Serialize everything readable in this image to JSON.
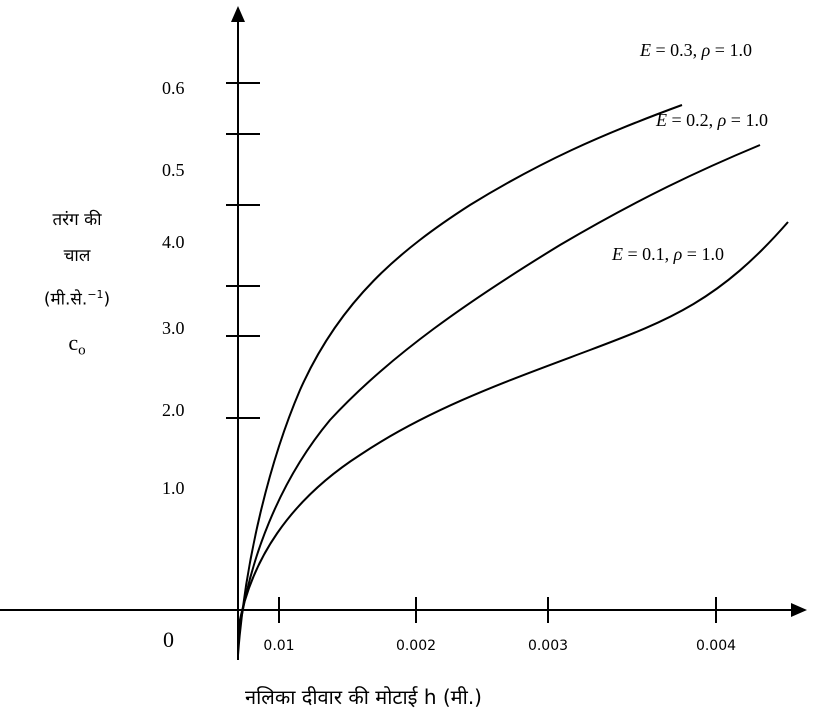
{
  "chart_data": {
    "type": "line",
    "title": "",
    "xlabel": "नलिका दीवार की मोटाई h   (मी.)",
    "ylabel": {
      "line1": "तरंग की",
      "line2": "चाल",
      "line3": "(मी.से.",
      "line3_sup": "−1",
      "line3_end": ")",
      "symbol": "c",
      "symbol_sub": "o"
    },
    "origin_label": "0",
    "x_ticks": [
      "0.01",
      "0.002",
      "0.003",
      "0.004"
    ],
    "y_ticks": [
      "1.0",
      "2.0",
      "3.0",
      "4.0",
      "0.5",
      "0.6"
    ],
    "series": [
      {
        "name": "E = 0.3, ρ = 1.0",
        "x": [
          0,
          0.0002,
          0.0005,
          0.001,
          0.0015,
          0.002,
          0.0025,
          0.003,
          0.0035,
          0.0039
        ],
        "values": [
          0.0,
          0.9,
          1.8,
          2.9,
          3.6,
          4.2,
          4.7,
          5.1,
          5.5,
          5.8
        ]
      },
      {
        "name": "E = 0.2, ρ = 1.0",
        "x": [
          0,
          0.0002,
          0.0005,
          0.001,
          0.0015,
          0.002,
          0.0025,
          0.003,
          0.0035,
          0.004,
          0.0044
        ],
        "values": [
          0.0,
          0.7,
          1.4,
          2.2,
          2.8,
          3.3,
          3.8,
          4.2,
          4.6,
          5.0,
          5.3
        ]
      },
      {
        "name": "E = 0.1, ρ = 1.0",
        "x": [
          0,
          0.0002,
          0.0005,
          0.001,
          0.0015,
          0.002,
          0.0025,
          0.003,
          0.0035,
          0.004,
          0.0045
        ],
        "values": [
          0.0,
          0.5,
          1.0,
          1.6,
          2.1,
          2.5,
          2.9,
          3.2,
          3.5,
          3.9,
          4.2
        ]
      }
    ],
    "labels": {
      "e03": {
        "E": "E",
        "rest": " = 0.3, ",
        "rho": "ρ",
        "rest2": " = 1.0"
      },
      "e02": {
        "E": "E",
        "rest": " = 0.2, ",
        "rho": "ρ",
        "rest2": " = 1.0"
      },
      "e01": {
        "E": "E",
        "rest": "  =  0.1,  ",
        "rho": "ρ",
        "rest2": "  =  1.0"
      }
    },
    "grid": false,
    "line_color": "#000000"
  }
}
